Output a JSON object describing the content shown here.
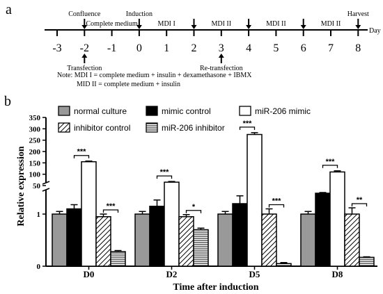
{
  "panel_a": {
    "label": "a",
    "axis_unit": "Day",
    "days": [
      "-3",
      "-2",
      "-1",
      "0",
      "1",
      "2",
      "3",
      "4",
      "5",
      "6",
      "7",
      "8"
    ],
    "events_above": [
      {
        "text": "Confluence"
      },
      {
        "text": "Induction"
      },
      {
        "text": "Harvest"
      }
    ],
    "segment_labels": [
      {
        "text": "Complete medium"
      },
      {
        "text": "MDI I"
      },
      {
        "text": "MDI II"
      },
      {
        "text": "MDI II"
      },
      {
        "text": "MDI II"
      }
    ],
    "events_below": [
      {
        "text": "Transfection"
      },
      {
        "text": "Re-transfection"
      }
    ],
    "note_line1": "Note: MDI I = complete medium + insulin + dexamethasone + IBMX",
    "note_line2": "MID II = complete medium + insulin"
  },
  "panel_b": {
    "label": "b"
  },
  "chart_data": {
    "type": "bar",
    "ylabel": "Relative expression",
    "xlabel": "Time after induction",
    "broken_axis": true,
    "y_ticks_lower": [
      "0",
      "1"
    ],
    "y_ticks_upper": [
      "50",
      "100",
      "150",
      "200",
      "250",
      "300",
      "350"
    ],
    "categories": [
      "D0",
      "D2",
      "D5",
      "D8"
    ],
    "legend_placement": "top",
    "series": [
      {
        "name": "normal culture",
        "fill": "#999999",
        "pattern": "solid",
        "values": [
          1.0,
          1.0,
          1.0,
          1.0
        ],
        "errors": [
          0.05,
          0.05,
          0.05,
          0.05
        ]
      },
      {
        "name": "mimic control",
        "fill": "#000000",
        "pattern": "solid",
        "values": [
          1.1,
          1.15,
          1.2,
          1.4
        ],
        "errors": [
          0.08,
          0.12,
          0.15,
          0.12
        ]
      },
      {
        "name": "miR-206 mimic",
        "fill": "#ffffff",
        "pattern": "solid",
        "values": [
          155,
          65,
          275,
          110
        ],
        "errors": [
          3,
          3,
          8,
          5
        ]
      },
      {
        "name": "inhibitor control",
        "fill": "#ffffff",
        "pattern": "diagonal",
        "values": [
          0.95,
          0.95,
          1.0,
          1.0
        ],
        "errors": [
          0.05,
          0.04,
          0.1,
          0.12
        ]
      },
      {
        "name": "miR-206 inhibitor",
        "fill": "#ffffff",
        "pattern": "horizontal",
        "values": [
          0.28,
          0.7,
          0.05,
          0.17
        ],
        "errors": [
          0.02,
          0.03,
          0.02,
          0.01
        ]
      }
    ],
    "significance": [
      {
        "category": "D0",
        "pair": "mimic",
        "label": "***"
      },
      {
        "category": "D0",
        "pair": "inhibitor",
        "label": "***"
      },
      {
        "category": "D2",
        "pair": "mimic",
        "label": "***"
      },
      {
        "category": "D2",
        "pair": "inhibitor",
        "label": "*"
      },
      {
        "category": "D5",
        "pair": "mimic",
        "label": "***"
      },
      {
        "category": "D5",
        "pair": "inhibitor",
        "label": "***"
      },
      {
        "category": "D8",
        "pair": "mimic",
        "label": "***"
      },
      {
        "category": "D8",
        "pair": "inhibitor",
        "label": "**"
      }
    ]
  }
}
